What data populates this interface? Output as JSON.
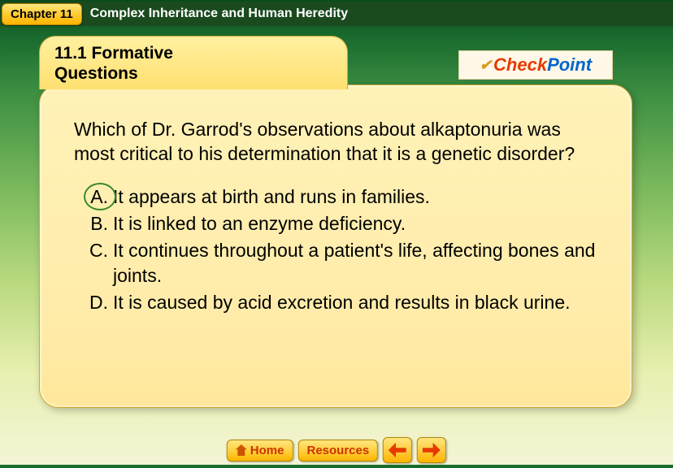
{
  "header": {
    "chapter_label": "Chapter 11",
    "title": "Complex Inheritance and Human Heredity"
  },
  "tab": {
    "title_line1": "11.1 Formative",
    "title_line2": "Questions"
  },
  "checkpoint": {
    "check": "Check",
    "point": "Point"
  },
  "question": "Which of Dr. Garrod's observations about alkaptonuria was most critical to his determination that it is a genetic disorder?",
  "answers": [
    {
      "letter": "A.",
      "text": "It appears at birth and runs in families.",
      "correct": true
    },
    {
      "letter": "B.",
      "text": "It is linked to an enzyme deficiency.",
      "correct": false
    },
    {
      "letter": "C.",
      "text": "It continues throughout a patient's life, affecting bones and joints.",
      "correct": false
    },
    {
      "letter": "D.",
      "text": "It is caused by acid excretion and results in black urine.",
      "correct": false
    }
  ],
  "footer": {
    "home": "Home",
    "resources": "Resources"
  },
  "colors": {
    "accent_orange": "#cc3300",
    "accent_blue": "#0066cc",
    "tab_bg": "#ffe070",
    "card_bg": "#ffecaa",
    "correct_ring": "#3a8a2a",
    "arrow_red": "#e63900"
  }
}
